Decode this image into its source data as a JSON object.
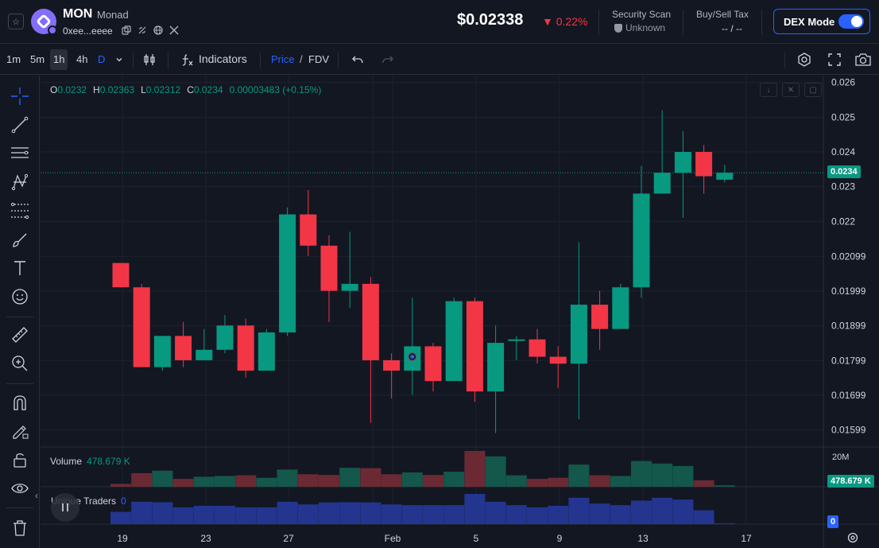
{
  "header": {
    "favorite_icon": "star-icon",
    "token_symbol": "MON",
    "token_name": "Monad",
    "token_address": "0xee...eeee",
    "price": "$0.02338",
    "change": "▼ 0.22%",
    "security_scan_label": "Security Scan",
    "security_scan_value": "Unknown",
    "buy_sell_tax_label": "Buy/Sell Tax",
    "buy_sell_tax_value": "-- / --",
    "dex_mode_label": "DEX Mode",
    "dex_mode_on": true
  },
  "toolbar": {
    "timeframes": [
      "1m",
      "5m",
      "1h",
      "4h",
      "D"
    ],
    "active_timeframe": "1h",
    "indicators_label": "Indicators",
    "price_label": "Price",
    "slash": "/",
    "fdv_label": "FDV"
  },
  "ohlc": {
    "o_label": "O",
    "o": "0.0232",
    "h_label": "H",
    "h": "0.02363",
    "l_label": "L",
    "l": "0.02312",
    "c_label": "C",
    "c": "0.0234",
    "change": "0.00003483 (+0.15%)"
  },
  "volume_pane": {
    "title": "Volume",
    "value": "478.679 K",
    "axis_label": "20M",
    "tag": "478.679 K"
  },
  "traders_pane": {
    "title": "Unique Traders",
    "value": "0",
    "tag": "0"
  },
  "price_axis_labels": [
    "0.026",
    "0.025",
    "0.024",
    "0.023",
    "0.022",
    "0.02099",
    "0.01999",
    "0.01899",
    "0.01799",
    "0.01699",
    "0.01599"
  ],
  "current_price_tag": "0.0234",
  "x_axis_labels": [
    "19",
    "23",
    "27",
    "Feb",
    "5",
    "9",
    "13",
    "17"
  ],
  "colors": {
    "up": "#089981",
    "down": "#f23645",
    "traders": "#2962ff",
    "bg": "#131722"
  },
  "chart_data": {
    "type": "candlestick",
    "price_axis_range": [
      0.0155,
      0.0262
    ],
    "candles": [
      {
        "o": 0.0208,
        "h": 0.0208,
        "l": 0.0201,
        "c": 0.0201
      },
      {
        "o": 0.0201,
        "h": 0.0202,
        "l": 0.0178,
        "c": 0.0178
      },
      {
        "o": 0.0178,
        "h": 0.0187,
        "l": 0.0177,
        "c": 0.0187
      },
      {
        "o": 0.0187,
        "h": 0.0191,
        "l": 0.0178,
        "c": 0.018
      },
      {
        "o": 0.018,
        "h": 0.0189,
        "l": 0.018,
        "c": 0.0183
      },
      {
        "o": 0.0183,
        "h": 0.0193,
        "l": 0.0182,
        "c": 0.019
      },
      {
        "o": 0.019,
        "h": 0.0192,
        "l": 0.0175,
        "c": 0.0177
      },
      {
        "o": 0.0177,
        "h": 0.0189,
        "l": 0.0177,
        "c": 0.0188
      },
      {
        "o": 0.0188,
        "h": 0.0224,
        "l": 0.0187,
        "c": 0.0222
      },
      {
        "o": 0.0222,
        "h": 0.0229,
        "l": 0.021,
        "c": 0.0213
      },
      {
        "o": 0.0213,
        "h": 0.0216,
        "l": 0.0191,
        "c": 0.02
      },
      {
        "o": 0.02,
        "h": 0.0217,
        "l": 0.0195,
        "c": 0.0202
      },
      {
        "o": 0.0202,
        "h": 0.0204,
        "l": 0.0162,
        "c": 0.018
      },
      {
        "o": 0.018,
        "h": 0.0182,
        "l": 0.0169,
        "c": 0.0177
      },
      {
        "o": 0.0177,
        "h": 0.0198,
        "l": 0.017,
        "c": 0.0184
      },
      {
        "o": 0.0184,
        "h": 0.0185,
        "l": 0.0171,
        "c": 0.0174
      },
      {
        "o": 0.0174,
        "h": 0.0198,
        "l": 0.0174,
        "c": 0.0197
      },
      {
        "o": 0.0197,
        "h": 0.0198,
        "l": 0.0168,
        "c": 0.0171
      },
      {
        "o": 0.0171,
        "h": 0.019,
        "l": 0.0159,
        "c": 0.0185
      },
      {
        "o": 0.0186,
        "h": 0.0187,
        "l": 0.018,
        "c": 0.0186
      },
      {
        "o": 0.0186,
        "h": 0.0189,
        "l": 0.0179,
        "c": 0.0181
      },
      {
        "o": 0.0181,
        "h": 0.0184,
        "l": 0.0172,
        "c": 0.0179
      },
      {
        "o": 0.0179,
        "h": 0.0214,
        "l": 0.0163,
        "c": 0.0196
      },
      {
        "o": 0.0196,
        "h": 0.02,
        "l": 0.0183,
        "c": 0.0189
      },
      {
        "o": 0.0189,
        "h": 0.0202,
        "l": 0.0189,
        "c": 0.0201
      },
      {
        "o": 0.0201,
        "h": 0.0236,
        "l": 0.0198,
        "c": 0.0228
      },
      {
        "o": 0.0228,
        "h": 0.0252,
        "l": 0.0228,
        "c": 0.0234
      },
      {
        "o": 0.0234,
        "h": 0.0246,
        "l": 0.0221,
        "c": 0.024
      },
      {
        "o": 0.024,
        "h": 0.0242,
        "l": 0.0228,
        "c": 0.0233
      },
      {
        "o": 0.0232,
        "h": 0.02363,
        "l": 0.02312,
        "c": 0.0234
      }
    ],
    "volume_share": [
      0.08,
      0.38,
      0.45,
      0.22,
      0.28,
      0.3,
      0.32,
      0.25,
      0.48,
      0.35,
      0.33,
      0.53,
      0.52,
      0.35,
      0.4,
      0.33,
      0.42,
      1.0,
      0.85,
      0.32,
      0.22,
      0.25,
      0.62,
      0.32,
      0.3,
      0.72,
      0.65,
      0.58,
      0.18,
      0.04
    ],
    "traders_share": [
      0.55,
      1.0,
      0.98,
      0.75,
      0.82,
      0.82,
      0.75,
      0.75,
      1.0,
      0.88,
      0.97,
      0.98,
      0.97,
      0.88,
      0.85,
      0.85,
      0.85,
      1.35,
      1.0,
      0.85,
      0.75,
      0.82,
      1.18,
      0.92,
      0.85,
      1.05,
      1.18,
      1.1,
      0.62,
      0.04
    ]
  }
}
